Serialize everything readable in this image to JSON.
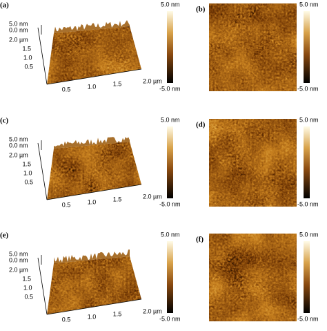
{
  "panels": [
    {
      "label": "(a)",
      "z_labels": [
        "5.0 nm",
        "0.0 nm"
      ],
      "y_labels": [
        "2.0 µm",
        "1.5",
        "1.0",
        "0.5"
      ],
      "x_labels": [
        "0.5",
        "1.0",
        "1.5",
        "2.0 µm"
      ],
      "colorbar": [
        "5.0 nm",
        "-5.0 nm"
      ]
    },
    {
      "label": "(b)",
      "colorbar": [
        "5.0 nm",
        "-5.0 nm"
      ]
    },
    {
      "label": "(c)",
      "z_labels": [
        "5.0 nm",
        "0.0 nm"
      ],
      "y_labels": [
        "2.0 µm",
        "1.5",
        "1.0",
        "0.5"
      ],
      "x_labels": [
        "0.5",
        "1.0",
        "1.5",
        "2.0 µm"
      ],
      "colorbar": [
        "5.0 nm",
        "-5.0 nm"
      ]
    },
    {
      "label": "(d)",
      "colorbar": [
        "5.0 nm",
        "-5.0 nm"
      ]
    },
    {
      "label": "(e)",
      "z_labels": [
        "5.0 nm",
        "0.0 nm"
      ],
      "y_labels": [
        "2.0 µm",
        "1.5",
        "1.0",
        "0.5"
      ],
      "x_labels": [
        "0.5",
        "1.0",
        "1.5",
        "2.0 µm"
      ],
      "colorbar": [
        "5.0 nm",
        "-5.0 nm"
      ]
    },
    {
      "label": "(f)",
      "colorbar": [
        "5.0 nm",
        "-5.0 nm"
      ]
    }
  ]
}
